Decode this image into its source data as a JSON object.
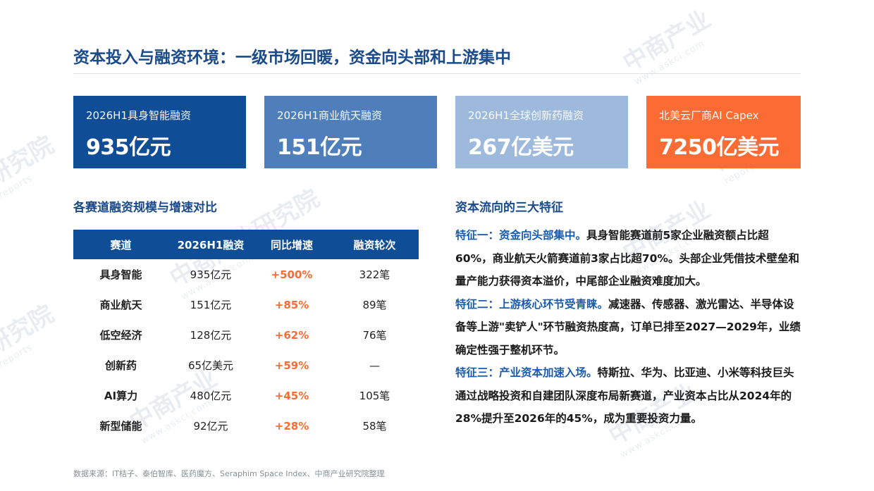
{
  "page": {
    "title": "资本投入与融资环境：一级市场回暖，资金向头部和上游集中"
  },
  "kpis": [
    {
      "label": "2026H1具身智能融资",
      "value": "935亿元",
      "color": "#0f4d96"
    },
    {
      "label": "2026H1商业航天融资",
      "value": "151亿元",
      "color": "#4f7fbb"
    },
    {
      "label": "2026H1全球创新药融资",
      "value": "267亿美元",
      "color": "#9db9dc"
    },
    {
      "label": "北美云厂商AI Capex",
      "value": "7250亿美元",
      "color": "#fb6b33"
    }
  ],
  "left_section": {
    "title": "各赛道融资规模与增速对比",
    "table": {
      "headers": [
        "赛道",
        "2026H1融资",
        "同比增速",
        "融资轮次"
      ],
      "rows": [
        [
          "具身智能",
          "935亿元",
          "+500%",
          "322笔"
        ],
        [
          "商业航天",
          "151亿元",
          "+85%",
          "89笔"
        ],
        [
          "低空经济",
          "128亿元",
          "+62%",
          "76笔"
        ],
        [
          "创新药",
          "65亿美元",
          "+59%",
          "—"
        ],
        [
          "AI算力",
          "480亿元",
          "+45%",
          "105笔"
        ],
        [
          "新型储能",
          "92亿元",
          "+28%",
          "58笔"
        ]
      ]
    }
  },
  "right_section": {
    "title": "资本流向的三大特征",
    "features": [
      {
        "title": "特征一：资金向头部集中。",
        "text": "具身智能赛道前5家企业融资额占比超60%，商业航天火箭赛道前3家占比超70%。头部企业凭借技术壁垒和量产能力获得资本溢价，中尾部企业融资难度加大。"
      },
      {
        "title": "特征二：上游核心环节受青睐。",
        "text": "减速器、传感器、激光雷达、半导体设备等上游\"卖铲人\"环节融资热度高，订单已排至2027—2029年，业绩确定性强于整机环节。"
      },
      {
        "title": "特征三：产业资本加速入场。",
        "text": "特斯拉、华为、比亚迪、小米等科技巨头通过战略投资和自建团队深度布局新赛道，产业资本占比从2024年的28%提升至2026年的45%，成为重要投资力量。"
      }
    ]
  },
  "footer": {
    "source": "数据来源：IT桔子、泰伯智库、医药魔方、Seraphim Space Index、中商产业研究院整理"
  },
  "colors": {
    "accent_blue": "#0f4d96",
    "accent_orange": "#fb6b33",
    "feature_title": "#1a5bb0"
  }
}
